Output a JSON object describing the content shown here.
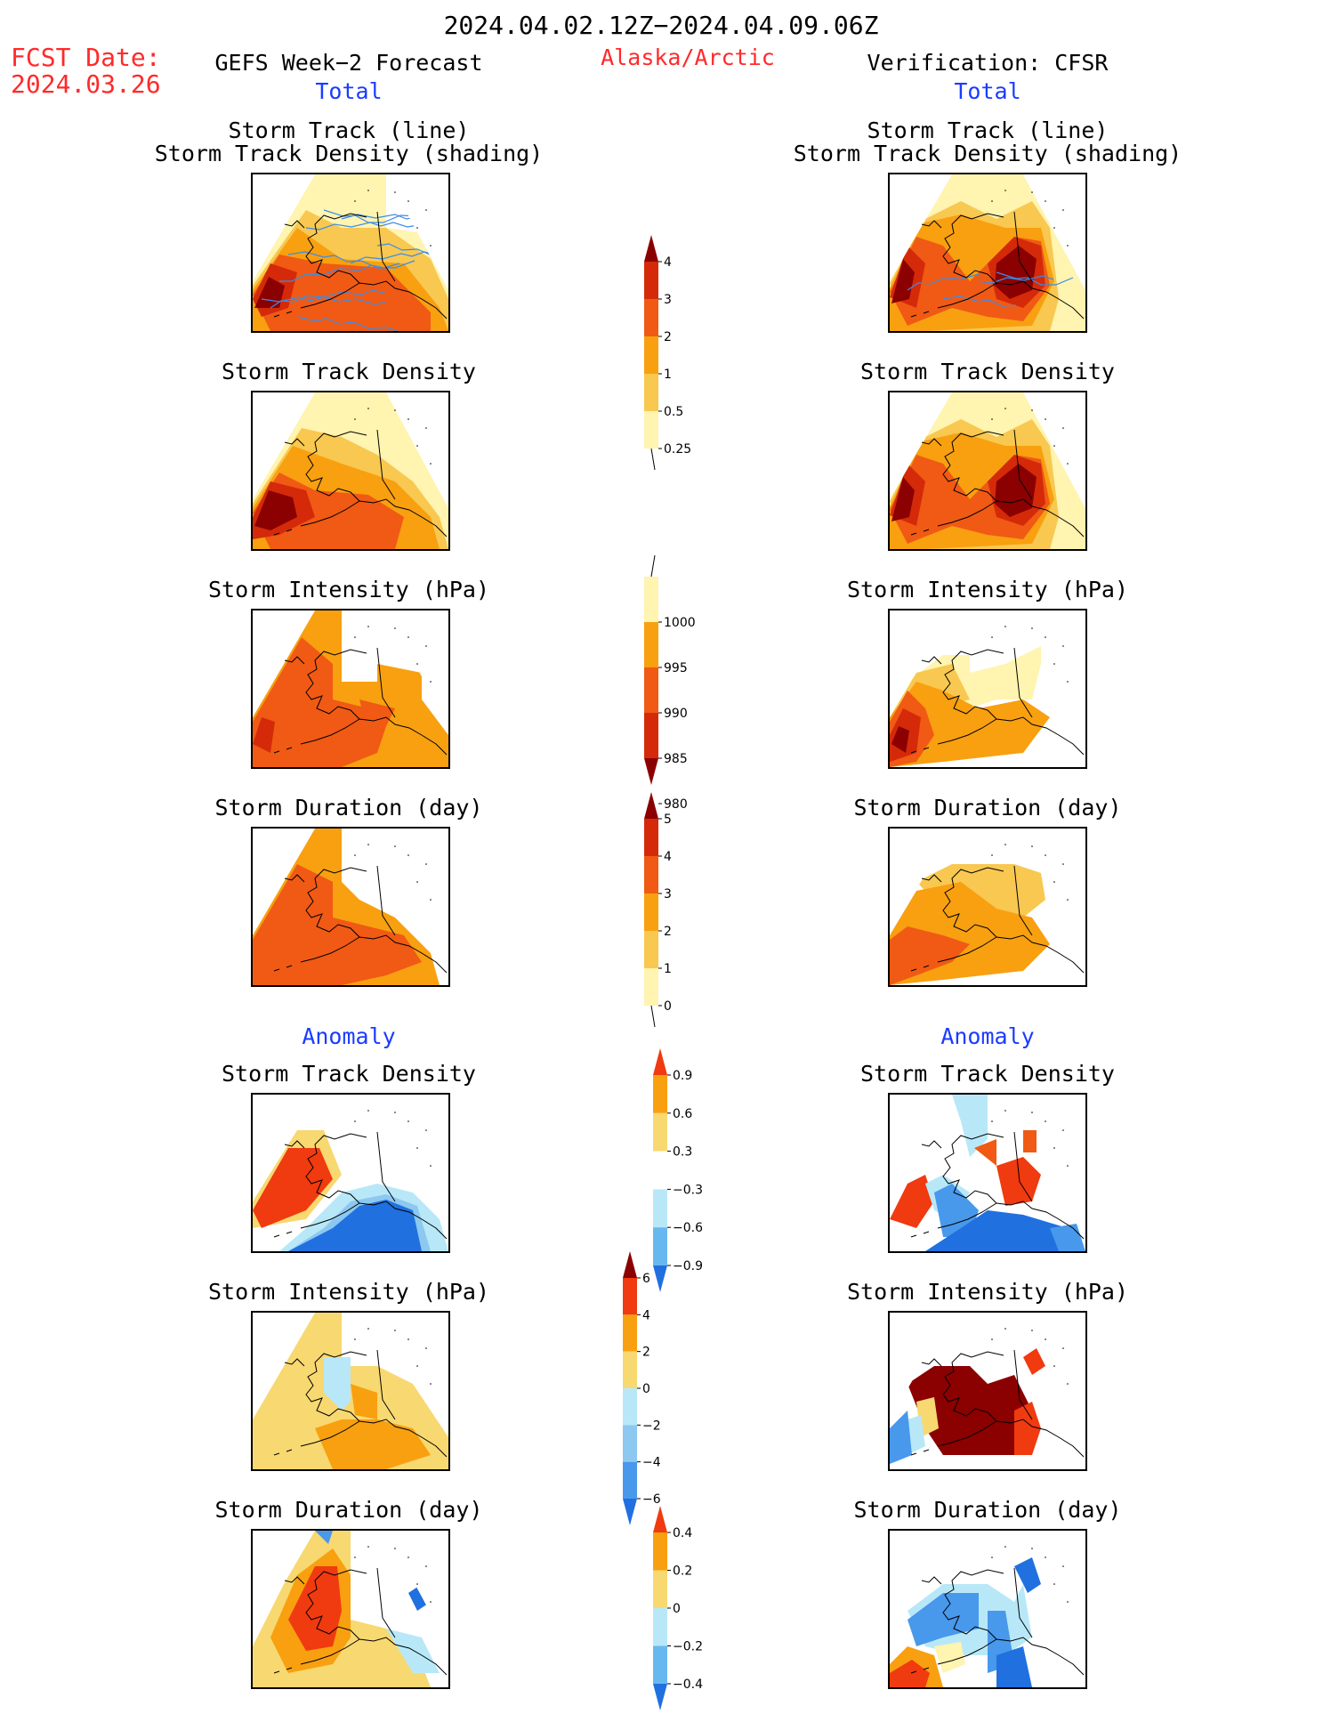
{
  "header": {
    "date_range": "2024.04.02.12Z−2024.04.09.06Z",
    "fcst_label": "FCST Date:",
    "fcst_date": "2024.03.26",
    "left_title": "GEFS Week−2 Forecast",
    "region": "Alaska/Arctic",
    "right_title": "Verification: CFSR",
    "total_left": "Total",
    "total_right": "Total",
    "anomaly_left": "Anomaly",
    "anomaly_right": "Anomaly"
  },
  "panel_titles": {
    "track_line": "Storm Track (line)",
    "track_shading": "Storm Track Density (shading)",
    "density": "Storm Track Density",
    "intensity": "Storm Intensity (hPa)",
    "duration": "Storm Duration (day)"
  },
  "colorbars": {
    "density_total": {
      "ticks": [
        "4",
        "3",
        "2",
        "1",
        "0.5",
        "0.25"
      ],
      "colors": [
        "#8b0000",
        "#d42a0a",
        "#f05a14",
        "#f8a010",
        "#f8c850",
        "#fff4b0"
      ]
    },
    "intensity_total": {
      "ticks": [
        "1000",
        "995",
        "990",
        "985",
        "980"
      ],
      "colors": [
        "#fff4b0",
        "#f8a010",
        "#f05a14",
        "#d42a0a",
        "#8b0000"
      ]
    },
    "duration_total": {
      "ticks": [
        "5",
        "4",
        "3",
        "2",
        "1",
        "0"
      ],
      "colors": [
        "#8b0000",
        "#d42a0a",
        "#f05a14",
        "#f8a010",
        "#f8c850",
        "#fff4b0"
      ]
    },
    "density_anom": {
      "ticks": [
        "0.9",
        "0.6",
        "0.3",
        "−0.3",
        "−0.6",
        "−0.9"
      ],
      "colors": [
        "#f03a10",
        "#f8a010",
        "#f8d870",
        "#ffffff",
        "#b8e8f8",
        "#68b8f0",
        "#2070e0"
      ]
    },
    "intensity_anom": {
      "ticks": [
        "6",
        "4",
        "2",
        "0",
        "−2",
        "−4",
        "−6"
      ],
      "colors": [
        "#8b0000",
        "#f03a10",
        "#f8a010",
        "#f8d870",
        "#b8e8f8",
        "#8cc8f0",
        "#4898ec",
        "#2070e0"
      ]
    },
    "duration_anom": {
      "ticks": [
        "0.4",
        "0.2",
        "0",
        "−0.2",
        "−0.4"
      ],
      "colors": [
        "#f03a10",
        "#f8a010",
        "#f8d870",
        "#b8e8f8",
        "#68b8f0",
        "#2070e0"
      ]
    }
  },
  "map_colors": {
    "track_line": "#3c8ce8",
    "coast": "#000000"
  }
}
